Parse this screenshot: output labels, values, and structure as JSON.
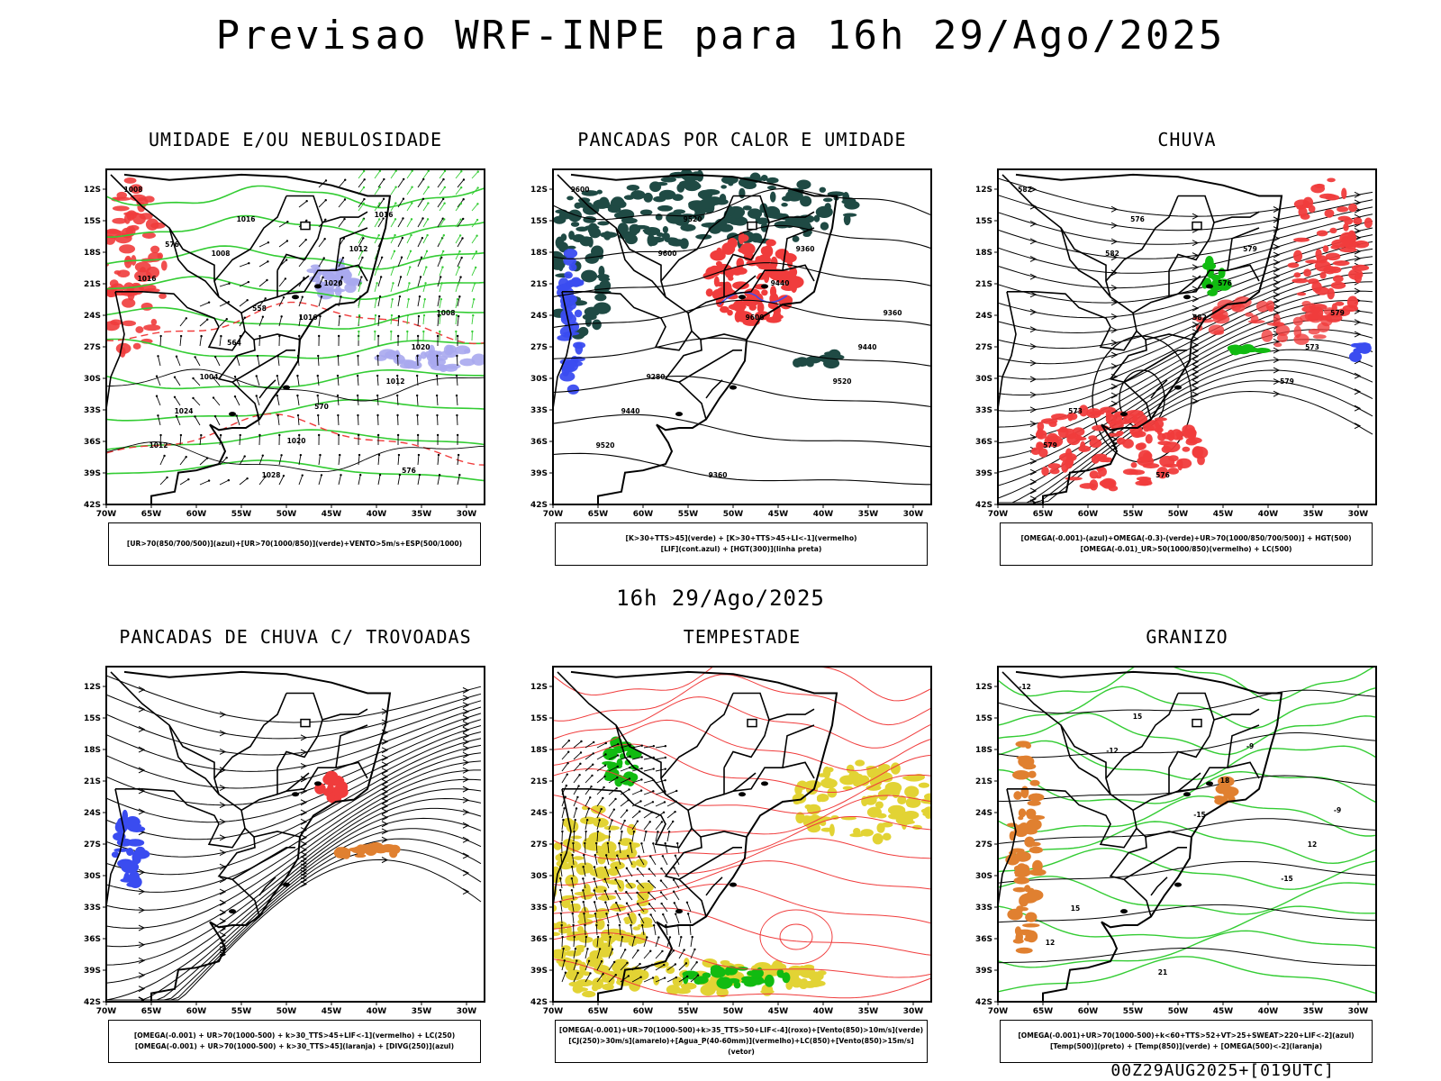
{
  "title": "Previsao WRF-INPE  para 16h 29/Ago/2025",
  "mid_label": "16h 29/Ago/2025",
  "footer": "00Z29AUG2025+[019UTC]",
  "axes": {
    "y_ticks": [
      "12S",
      "15S",
      "18S",
      "21S",
      "24S",
      "27S",
      "30S",
      "33S",
      "36S",
      "39S",
      "42S"
    ],
    "x_ticks": [
      "70W",
      "65W",
      "60W",
      "55W",
      "50W",
      "45W",
      "40W",
      "35W",
      "30W"
    ]
  },
  "colors": {
    "red": "#f03c3c",
    "green": "#33cc33",
    "dark_green": "#1f4a44",
    "blue": "#3a4cf0",
    "lavender": "#a9a9ee",
    "yellow": "#e2d334",
    "orange": "#e08030",
    "bright_green": "#11bb11"
  },
  "panels": [
    {
      "title": "UMIDADE E/OU NEBULOSIDADE",
      "legend": [
        "[UR>70(850/700/500)](azul)+[UR>70(1000/850)](verde)+VENTO>5m/s+ESP(500/1000)"
      ],
      "labels": [
        "1008",
        "1008",
        "1016",
        "1012",
        "1012",
        "1016",
        "1020",
        "1020",
        "1024",
        "1028",
        "1012",
        "1008",
        "1004",
        "1020",
        "1016",
        "1016",
        "564",
        "570",
        "576",
        "576",
        "558"
      ]
    },
    {
      "title": "PANCADAS POR CALOR E UMIDADE",
      "legend": [
        "[K>30+TTS>45](verde) + [K>30+TTS>45+LI<-1](vermelho)",
        "[LIF](cont.azul) + [HGT(300)](linha preta)"
      ],
      "labels": [
        "9600",
        "9600",
        "9600",
        "9520",
        "9520",
        "9520",
        "9440",
        "9440",
        "9440",
        "9360",
        "9360",
        "9360",
        "9280"
      ]
    },
    {
      "title": "CHUVA",
      "legend": [
        "[OMEGA(-0.001)-(azul)+OMEGA(-0.3)-(verde)+UR>70(1000/850/700/500)] + HGT(500)",
        "[OMEGA(-0.01)_UR>50(1000/850)(vermelho) + LC(500)"
      ],
      "labels": [
        "582",
        "582",
        "582",
        "579",
        "579",
        "576",
        "576",
        "573",
        "573",
        "576",
        "579",
        "579"
      ]
    },
    {
      "title": "PANCADAS DE CHUVA C/ TROVOADAS",
      "legend": [
        "[OMEGA(-0.001) + UR>70(1000-500) + k>30_TTS>45+LIF<-1](vermelho) + LC(250)",
        "[OMEGA(-0.001) + UR>70(1000-500) + k>30_TTS>45](laranja) + [DIVG(250)](azul)"
      ],
      "labels": []
    },
    {
      "title": "TEMPESTADE",
      "legend": [
        "[OMEGA(-0.001)+UR>70(1000-500)+k>35_TTS>50+LIF<-4](roxo)+[Vento(850)>10m/s](verde)",
        "[CJ(250)>30m/s](amarelo)+[Agua_P(40-60mm)](vermelho)+LC(850)+[Vento(850)>15m/s](vetor)"
      ],
      "labels": []
    },
    {
      "title": "GRANIZO",
      "legend": [
        "[OMEGA(-0.001)+UR>70(1000-500)+k<60+TTS>52+VT>25+SWEAT>220+LIF<-2](azul)",
        "[Temp(500)](preto) + [Temp(850)](verde) + [OMEGA(500)<-2](laranja)"
      ],
      "labels": [
        "-12",
        "-12",
        "-15",
        "-15",
        "12",
        "15",
        "18",
        "12",
        "15",
        "21",
        "-9",
        "-9"
      ]
    }
  ]
}
